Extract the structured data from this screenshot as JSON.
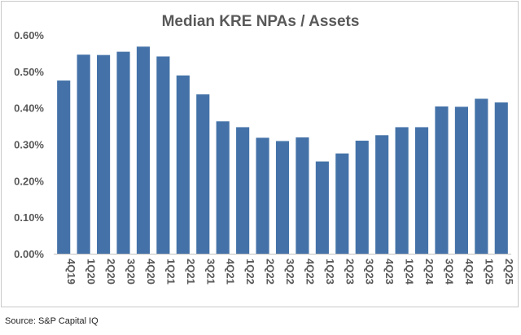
{
  "chart_data": {
    "type": "bar",
    "title": "Median KRE NPAs / Assets",
    "categories": [
      "4Q19",
      "1Q20",
      "2Q20",
      "3Q20",
      "4Q20",
      "1Q21",
      "2Q21",
      "3Q21",
      "4Q21",
      "1Q22",
      "2Q22",
      "3Q22",
      "4Q22",
      "1Q23",
      "2Q23",
      "3Q23",
      "4Q23",
      "1Q24",
      "2Q24",
      "3Q24",
      "4Q24",
      "1Q25",
      "2Q25"
    ],
    "values": [
      0.475,
      0.546,
      0.545,
      0.554,
      0.568,
      0.541,
      0.489,
      0.437,
      0.363,
      0.347,
      0.318,
      0.309,
      0.319,
      0.253,
      0.275,
      0.31,
      0.325,
      0.347,
      0.347,
      0.404,
      0.403,
      0.425,
      0.415
    ],
    "value_unit": "%",
    "ylim": [
      0,
      0.6
    ],
    "yticks": [
      "0.00%",
      "0.10%",
      "0.20%",
      "0.30%",
      "0.40%",
      "0.50%",
      "0.60%"
    ],
    "xlabel": "",
    "ylabel": "",
    "grid": false,
    "bar_color": "#4472a8"
  },
  "source": "Source: S&P Capital IQ"
}
